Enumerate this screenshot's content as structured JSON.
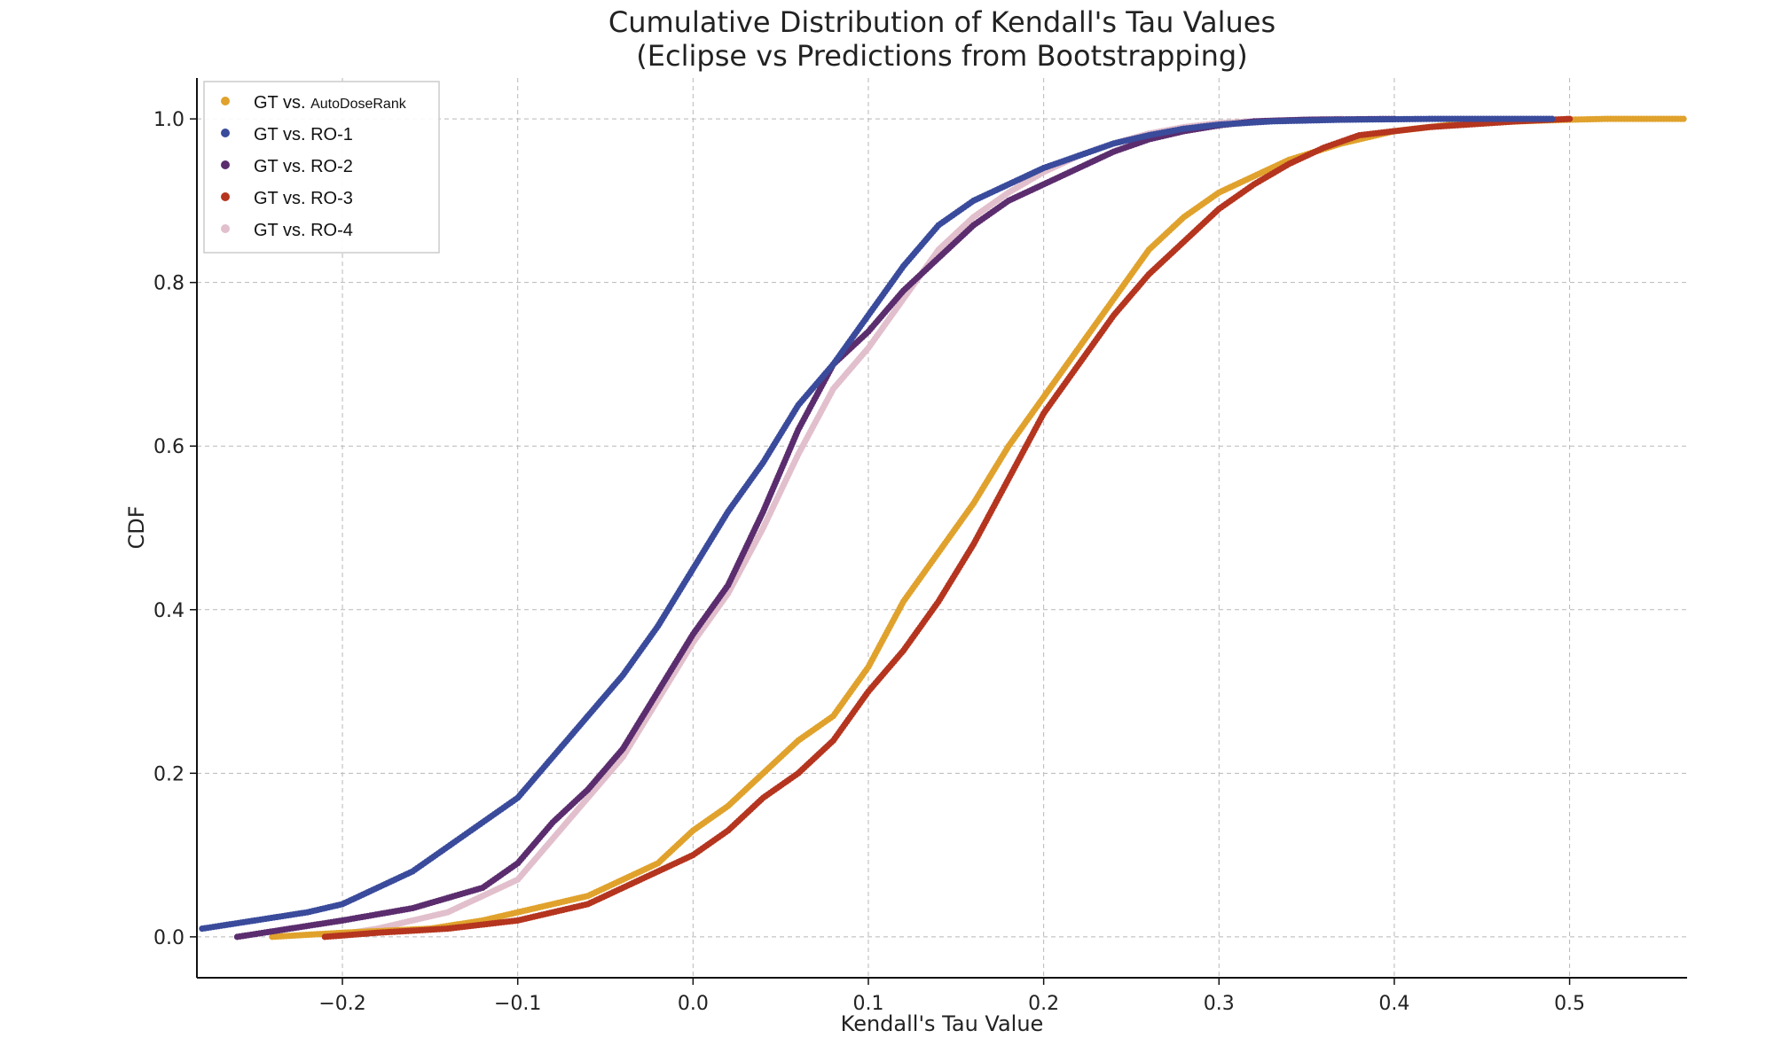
{
  "chart_data": {
    "type": "scatter",
    "title": "Cumulative Distribution of Kendall's Tau Values",
    "subtitle": "(Eclipse vs Predictions from Bootstrapping)",
    "xlabel": "Kendall's Tau Value",
    "ylabel": "CDF",
    "xlim": [
      -0.283,
      0.567
    ],
    "ylim": [
      -0.05,
      1.05
    ],
    "xticks": [
      -0.2,
      -0.1,
      0.0,
      0.1,
      0.2,
      0.3,
      0.4,
      0.5
    ],
    "xtick_labels": [
      "−0.2",
      "−0.1",
      "0.0",
      "0.1",
      "0.2",
      "0.3",
      "0.4",
      "0.5"
    ],
    "yticks": [
      0.0,
      0.2,
      0.4,
      0.6,
      0.8,
      1.0
    ],
    "ytick_labels": [
      "0.0",
      "0.2",
      "0.4",
      "0.6",
      "0.8",
      "1.0"
    ],
    "grid": true,
    "legend_position": "top-left",
    "series": [
      {
        "name": "GT vs. AutoDoseRank",
        "legend_prefix": "GT vs.",
        "legend_suffix": "AutoDoseRank",
        "color": "#E0A22C",
        "points": [
          [
            -0.24,
            0.0
          ],
          [
            -0.2,
            0.005
          ],
          [
            -0.15,
            0.01
          ],
          [
            -0.12,
            0.02
          ],
          [
            -0.1,
            0.03
          ],
          [
            -0.08,
            0.04
          ],
          [
            -0.06,
            0.05
          ],
          [
            -0.04,
            0.07
          ],
          [
            -0.02,
            0.09
          ],
          [
            0.0,
            0.13
          ],
          [
            0.02,
            0.16
          ],
          [
            0.04,
            0.2
          ],
          [
            0.06,
            0.24
          ],
          [
            0.08,
            0.27
          ],
          [
            0.1,
            0.33
          ],
          [
            0.12,
            0.41
          ],
          [
            0.14,
            0.47
          ],
          [
            0.16,
            0.53
          ],
          [
            0.18,
            0.6
          ],
          [
            0.2,
            0.66
          ],
          [
            0.22,
            0.72
          ],
          [
            0.24,
            0.78
          ],
          [
            0.26,
            0.84
          ],
          [
            0.28,
            0.88
          ],
          [
            0.3,
            0.91
          ],
          [
            0.32,
            0.93
          ],
          [
            0.34,
            0.95
          ],
          [
            0.37,
            0.97
          ],
          [
            0.4,
            0.985
          ],
          [
            0.44,
            0.995
          ],
          [
            0.5,
            0.999
          ],
          [
            0.52,
            1.0
          ],
          [
            0.565,
            1.0
          ]
        ]
      },
      {
        "name": "GT vs. RO-1",
        "legend_prefix": "GT vs.",
        "legend_suffix": "RO-1",
        "color": "#3A4B9C",
        "points": [
          [
            -0.28,
            0.01
          ],
          [
            -0.25,
            0.02
          ],
          [
            -0.22,
            0.03
          ],
          [
            -0.2,
            0.04
          ],
          [
            -0.18,
            0.06
          ],
          [
            -0.16,
            0.08
          ],
          [
            -0.14,
            0.11
          ],
          [
            -0.12,
            0.14
          ],
          [
            -0.1,
            0.17
          ],
          [
            -0.08,
            0.22
          ],
          [
            -0.06,
            0.27
          ],
          [
            -0.04,
            0.32
          ],
          [
            -0.02,
            0.38
          ],
          [
            0.0,
            0.45
          ],
          [
            0.02,
            0.52
          ],
          [
            0.04,
            0.58
          ],
          [
            0.06,
            0.65
          ],
          [
            0.08,
            0.7
          ],
          [
            0.1,
            0.76
          ],
          [
            0.12,
            0.82
          ],
          [
            0.14,
            0.87
          ],
          [
            0.16,
            0.9
          ],
          [
            0.18,
            0.92
          ],
          [
            0.2,
            0.94
          ],
          [
            0.22,
            0.955
          ],
          [
            0.24,
            0.97
          ],
          [
            0.26,
            0.98
          ],
          [
            0.28,
            0.988
          ],
          [
            0.3,
            0.993
          ],
          [
            0.33,
            0.997
          ],
          [
            0.37,
            0.999
          ],
          [
            0.42,
            1.0
          ],
          [
            0.49,
            1.0
          ]
        ]
      },
      {
        "name": "GT vs. RO-2",
        "legend_prefix": "GT vs.",
        "legend_suffix": "RO-2",
        "color": "#5B2D6E",
        "points": [
          [
            -0.26,
            0.0
          ],
          [
            -0.2,
            0.02
          ],
          [
            -0.16,
            0.035
          ],
          [
            -0.12,
            0.06
          ],
          [
            -0.1,
            0.09
          ],
          [
            -0.08,
            0.14
          ],
          [
            -0.06,
            0.18
          ],
          [
            -0.04,
            0.23
          ],
          [
            -0.02,
            0.3
          ],
          [
            0.0,
            0.37
          ],
          [
            0.02,
            0.43
          ],
          [
            0.04,
            0.52
          ],
          [
            0.06,
            0.62
          ],
          [
            0.08,
            0.7
          ],
          [
            0.1,
            0.74
          ],
          [
            0.12,
            0.79
          ],
          [
            0.14,
            0.83
          ],
          [
            0.16,
            0.87
          ],
          [
            0.18,
            0.9
          ],
          [
            0.2,
            0.92
          ],
          [
            0.22,
            0.94
          ],
          [
            0.24,
            0.96
          ],
          [
            0.26,
            0.975
          ],
          [
            0.28,
            0.985
          ],
          [
            0.3,
            0.992
          ],
          [
            0.32,
            0.997
          ],
          [
            0.35,
            0.999
          ],
          [
            0.4,
            1.0
          ]
        ]
      },
      {
        "name": "GT vs. RO-3",
        "legend_prefix": "GT vs.",
        "legend_suffix": "RO-3",
        "color": "#B5351F",
        "points": [
          [
            -0.21,
            0.0
          ],
          [
            -0.18,
            0.005
          ],
          [
            -0.14,
            0.01
          ],
          [
            -0.1,
            0.02
          ],
          [
            -0.08,
            0.03
          ],
          [
            -0.06,
            0.04
          ],
          [
            -0.04,
            0.06
          ],
          [
            -0.02,
            0.08
          ],
          [
            0.0,
            0.1
          ],
          [
            0.02,
            0.13
          ],
          [
            0.04,
            0.17
          ],
          [
            0.06,
            0.2
          ],
          [
            0.08,
            0.24
          ],
          [
            0.1,
            0.3
          ],
          [
            0.12,
            0.35
          ],
          [
            0.14,
            0.41
          ],
          [
            0.16,
            0.48
          ],
          [
            0.18,
            0.56
          ],
          [
            0.2,
            0.64
          ],
          [
            0.22,
            0.7
          ],
          [
            0.24,
            0.76
          ],
          [
            0.26,
            0.81
          ],
          [
            0.28,
            0.85
          ],
          [
            0.3,
            0.89
          ],
          [
            0.32,
            0.92
          ],
          [
            0.34,
            0.945
          ],
          [
            0.36,
            0.965
          ],
          [
            0.38,
            0.98
          ],
          [
            0.42,
            0.99
          ],
          [
            0.47,
            0.997
          ],
          [
            0.5,
            1.0
          ]
        ]
      },
      {
        "name": "GT vs. RO-4",
        "legend_prefix": "GT vs.",
        "legend_suffix": "RO-4",
        "color": "#E2BFCC",
        "points": [
          [
            -0.21,
            0.0
          ],
          [
            -0.18,
            0.01
          ],
          [
            -0.14,
            0.03
          ],
          [
            -0.1,
            0.07
          ],
          [
            -0.08,
            0.12
          ],
          [
            -0.06,
            0.17
          ],
          [
            -0.04,
            0.22
          ],
          [
            -0.02,
            0.29
          ],
          [
            0.0,
            0.36
          ],
          [
            0.02,
            0.42
          ],
          [
            0.04,
            0.5
          ],
          [
            0.06,
            0.59
          ],
          [
            0.08,
            0.67
          ],
          [
            0.1,
            0.72
          ],
          [
            0.12,
            0.78
          ],
          [
            0.14,
            0.84
          ],
          [
            0.16,
            0.88
          ],
          [
            0.18,
            0.91
          ],
          [
            0.2,
            0.935
          ],
          [
            0.22,
            0.955
          ],
          [
            0.24,
            0.97
          ],
          [
            0.26,
            0.982
          ],
          [
            0.28,
            0.99
          ],
          [
            0.3,
            0.995
          ],
          [
            0.33,
            0.998
          ],
          [
            0.37,
            1.0
          ]
        ]
      }
    ]
  }
}
